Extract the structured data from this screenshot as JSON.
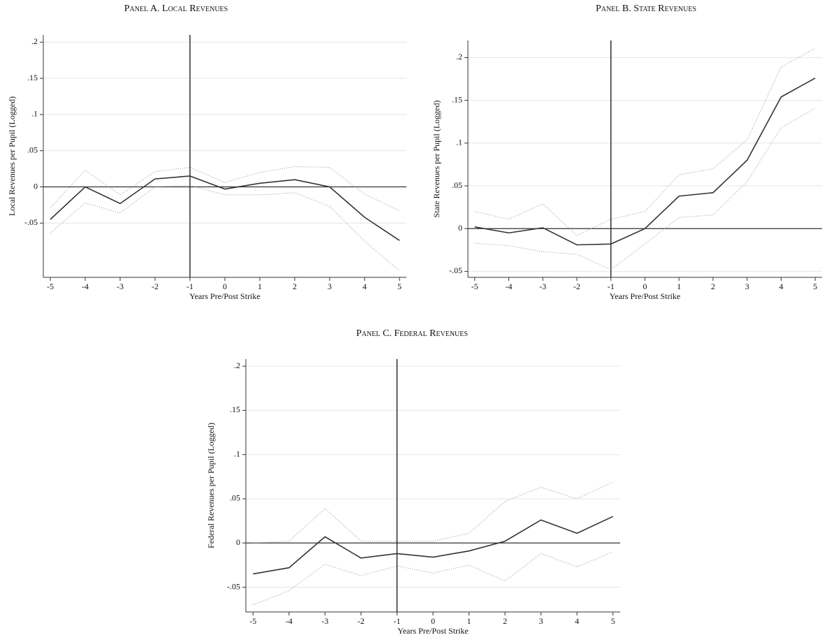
{
  "chart_data": [
    {
      "type": "line",
      "title": "Panel A. Local Revenues",
      "xlabel": "Years Pre/Post Strike",
      "ylabel": "Local Revenues per Pupil (Logged)",
      "x": [
        -5,
        -4,
        -3,
        -2,
        -1,
        0,
        1,
        2,
        3,
        4,
        5
      ],
      "series": [
        {
          "color": "#333333",
          "style": "solid",
          "values": [
            -0.045,
            0,
            -0.023,
            0.011,
            0.015,
            -0.003,
            0.005,
            0.01,
            0,
            -0.042,
            -0.074
          ]
        },
        {
          "color": "#999999",
          "style": "dotted",
          "values": [
            -0.029,
            0.023,
            -0.011,
            0.021,
            0.027,
            0.006,
            0.02,
            0.028,
            0.027,
            -0.01,
            -0.033
          ]
        },
        {
          "color": "#999999",
          "style": "dotted",
          "values": [
            -0.064,
            -0.022,
            -0.036,
            0,
            0.002,
            -0.011,
            -0.011,
            -0.008,
            -0.027,
            -0.075,
            -0.116
          ]
        }
      ],
      "xlim": [
        -5.2,
        5.2
      ],
      "xticks": [
        -5,
        -4,
        -3,
        -2,
        -1,
        0,
        1,
        2,
        3,
        4,
        5
      ],
      "ylim": [
        -0.125,
        0.21
      ],
      "yticks": [
        {
          "value": -0.05,
          "label": "-.05"
        },
        0,
        {
          "value": 0.05,
          "label": ".05"
        },
        {
          "value": 0.1,
          "label": ".1"
        },
        {
          "value": 0.15,
          "label": ".15"
        },
        {
          "value": 0.2,
          "label": ".2"
        }
      ],
      "vline": -1,
      "hline": 0,
      "grid": true
    },
    {
      "type": "line",
      "title": "Panel B. State Revenues",
      "xlabel": "Years Pre/Post Strike",
      "ylabel": "State Revenues per Pupil (Logged)",
      "x": [
        -5,
        -4,
        -3,
        -2,
        -1,
        0,
        1,
        2,
        3,
        4,
        5
      ],
      "series": [
        {
          "color": "#333333",
          "style": "solid",
          "values": [
            0.002,
            -0.005,
            0.001,
            -0.019,
            -0.018,
            0,
            0.038,
            0.042,
            0.08,
            0.154,
            0.176
          ]
        },
        {
          "color": "#999999",
          "style": "dotted",
          "values": [
            0.02,
            0.011,
            0.029,
            -0.008,
            0.011,
            0.02,
            0.063,
            0.07,
            0.104,
            0.189,
            0.211
          ]
        },
        {
          "color": "#999999",
          "style": "dotted",
          "values": [
            -0.017,
            -0.02,
            -0.027,
            -0.03,
            -0.048,
            -0.018,
            0.013,
            0.016,
            0.055,
            0.118,
            0.141
          ]
        }
      ],
      "xlim": [
        -5.2,
        5.2
      ],
      "xticks": [
        -5,
        -4,
        -3,
        -2,
        -1,
        0,
        1,
        2,
        3,
        4,
        5
      ],
      "ylim": [
        -0.057,
        0.22
      ],
      "yticks": [
        {
          "value": -0.05,
          "label": "-.05"
        },
        0,
        {
          "value": 0.05,
          "label": ".05"
        },
        {
          "value": 0.1,
          "label": ".1"
        },
        {
          "value": 0.15,
          "label": ".15"
        },
        {
          "value": 0.2,
          "label": ".2"
        }
      ],
      "vline": -1,
      "hline": 0,
      "grid": true
    },
    {
      "type": "line",
      "title": "Panel C. Federal Revenues",
      "xlabel": "Years Pre/Post Strike",
      "ylabel": "Federal Revenues per Pupil (Logged)",
      "x": [
        -5,
        -4,
        -3,
        -2,
        -1,
        0,
        1,
        2,
        3,
        4,
        5
      ],
      "series": [
        {
          "color": "#333333",
          "style": "solid",
          "values": [
            -0.035,
            -0.028,
            0.007,
            -0.017,
            -0.012,
            -0.016,
            -0.009,
            0.002,
            0.026,
            0.011,
            0.03
          ]
        },
        {
          "color": "#999999",
          "style": "dotted",
          "values": [
            0,
            0.002,
            0.039,
            0.002,
            0.002,
            0.002,
            0.011,
            0.047,
            0.063,
            0.05,
            0.069
          ]
        },
        {
          "color": "#999999",
          "style": "dotted",
          "values": [
            -0.07,
            -0.054,
            -0.024,
            -0.037,
            -0.026,
            -0.034,
            -0.025,
            -0.043,
            -0.012,
            -0.027,
            -0.01
          ]
        }
      ],
      "xlim": [
        -5.2,
        5.2
      ],
      "xticks": [
        -5,
        -4,
        -3,
        -2,
        -1,
        0,
        1,
        2,
        3,
        4,
        5
      ],
      "ylim": [
        -0.078,
        0.208
      ],
      "yticks": [
        {
          "value": -0.05,
          "label": "-.05"
        },
        0,
        {
          "value": 0.05,
          "label": ".05"
        },
        {
          "value": 0.1,
          "label": ".1"
        },
        {
          "value": 0.15,
          "label": ".15"
        },
        {
          "value": 0.2,
          "label": ".2"
        }
      ],
      "vline": -1,
      "hline": 0,
      "grid": true
    }
  ]
}
